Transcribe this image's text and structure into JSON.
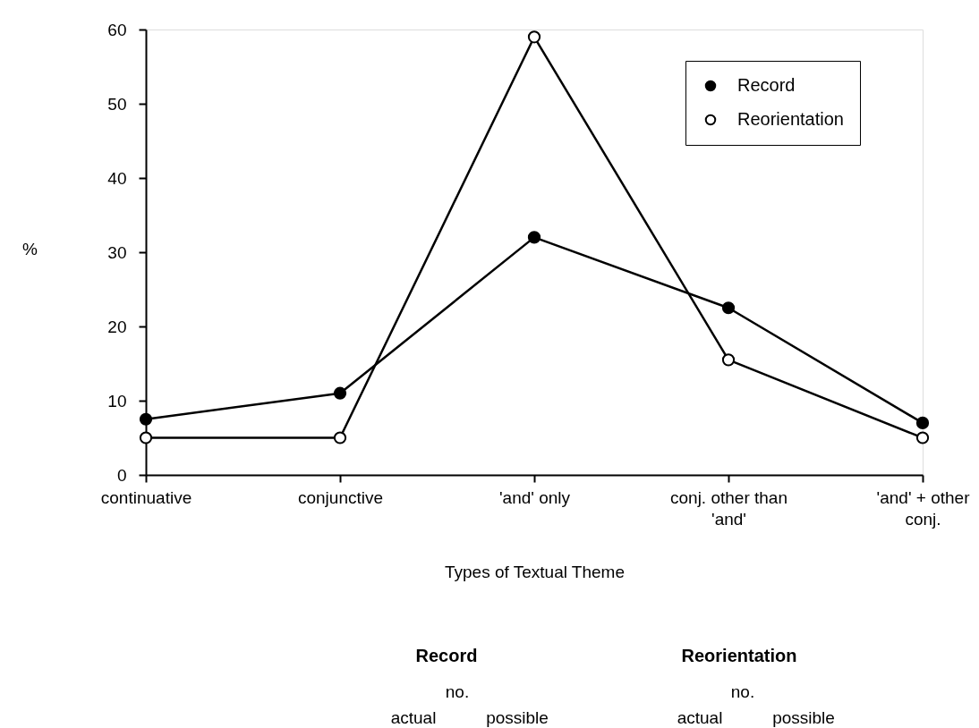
{
  "chart_data": {
    "type": "line",
    "xlabel": "Types of Textual Theme",
    "ylabel": "%",
    "categories": [
      "continuative",
      "conjunctive",
      "'and' only",
      "conj. other than 'and'",
      "'and' + other conj."
    ],
    "series": [
      {
        "name": "Record",
        "color": "#000000",
        "values": [
          7.5,
          11,
          32,
          22.5,
          7
        ]
      },
      {
        "name": "Reorientation",
        "color": "#000000",
        "values": [
          5,
          5,
          59,
          15.5,
          5
        ]
      }
    ],
    "ylim": [
      0,
      60
    ],
    "yticks": [
      0,
      10,
      20,
      30,
      40,
      50,
      60
    ],
    "grid": false,
    "legend": "top right",
    "marker": "circle",
    "line_style": "solid",
    "annotations": [
      "Record",
      "Reorientation",
      "no.",
      "no.",
      "actual",
      "possible",
      "actual",
      "possible"
    ]
  }
}
